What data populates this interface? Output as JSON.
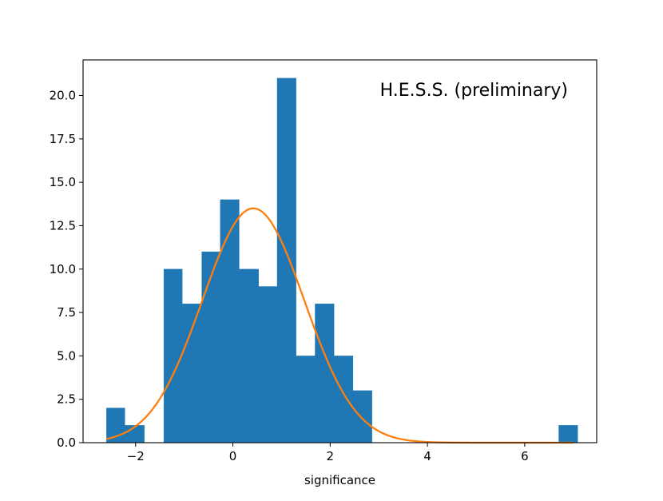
{
  "chart_data": {
    "type": "bar",
    "annotation": "H.E.S.S. (preliminary)",
    "xlabel": "significance",
    "ylabel": "",
    "xlim": [
      -3.08,
      7.48
    ],
    "ylim": [
      0,
      22.05
    ],
    "x_ticks": [
      -2,
      0,
      2,
      4,
      6
    ],
    "x_tick_labels": [
      "−2",
      "0",
      "2",
      "4",
      "6"
    ],
    "y_ticks": [
      0,
      2.5,
      5,
      7.5,
      10,
      12.5,
      15,
      17.5,
      20
    ],
    "y_tick_labels": [
      "0.0",
      "2.5",
      "5.0",
      "7.5",
      "10.0",
      "12.5",
      "15.0",
      "17.5",
      "20.0"
    ],
    "grid": false,
    "histogram": {
      "bin_edges": [
        -2.6,
        -2.22,
        -1.82,
        -1.42,
        -1.04,
        -0.64,
        -0.26,
        0.13,
        0.53,
        0.91,
        1.3,
        1.69,
        2.08,
        2.47,
        2.86
      ],
      "counts": [
        2,
        1,
        0,
        10,
        8,
        11,
        14,
        10,
        9,
        21,
        5,
        8,
        5,
        3
      ],
      "outlier_bins": [
        {
          "x0": 6.7,
          "x1": 7.09,
          "count": 1
        }
      ],
      "color": "#1f77b4"
    },
    "fit_curve": {
      "type": "gaussian",
      "amplitude": 13.5,
      "mean": 0.42,
      "sigma": 1.05,
      "x_range": [
        -2.6,
        7.0
      ],
      "color": "#ff7f0e"
    }
  }
}
